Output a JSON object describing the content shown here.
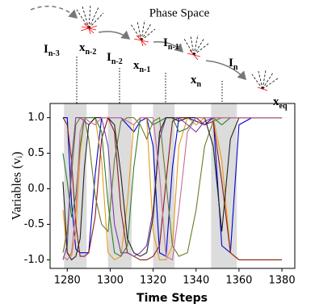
{
  "chart_data": {
    "type": "line",
    "diagram_title": "Phase Space",
    "diagram_labels": [
      {
        "main": "I",
        "sub": "n-3"
      },
      {
        "main": "x",
        "sub": "n-2"
      },
      {
        "main": "I",
        "sub": "n-2"
      },
      {
        "main": "x",
        "sub": "n-1"
      },
      {
        "main": "I",
        "sub": "n-1"
      },
      {
        "main": "x",
        "sub": "n"
      },
      {
        "main": "I",
        "sub": "n"
      },
      {
        "main": "x",
        "sub": "eq"
      }
    ],
    "xlabel": "Time Steps",
    "ylabel": "Variables (vᵢ)",
    "xlim": [
      1272,
      1386
    ],
    "ylim": [
      -1.12,
      1.2
    ],
    "xticks": [
      1280,
      1300,
      1320,
      1340,
      1360,
      1380
    ],
    "yticks": [
      {
        "value": -1,
        "label": "-1.0"
      },
      {
        "value": -0.5,
        "label": "-0.5"
      },
      {
        "value": 0,
        "label": "0.0"
      },
      {
        "value": 0.5,
        "label": "0.5"
      },
      {
        "value": 1,
        "label": "1.0"
      }
    ],
    "shaded_regions": [
      [
        1278.5,
        1289
      ],
      [
        1299,
        1310
      ],
      [
        1320,
        1330
      ],
      [
        1347,
        1359
      ]
    ],
    "shade_color": "#dcdcdc",
    "x": [
      1278,
      1280,
      1282,
      1284,
      1286,
      1288,
      1290,
      1293,
      1296,
      1299,
      1302,
      1305,
      1308,
      1311,
      1314,
      1317,
      1320,
      1323,
      1326,
      1329,
      1332,
      1336,
      1340,
      1344,
      1348,
      1352,
      1356,
      1360,
      1366,
      1372,
      1380
    ],
    "series": [
      {
        "color": "#0000cc",
        "values": [
          1,
          1,
          -0.2,
          -0.85,
          -0.9,
          -0.9,
          -0.9,
          0.2,
          1,
          1,
          1,
          1,
          0.9,
          0.8,
          0.95,
          1,
          0.6,
          -0.9,
          -0.95,
          0.3,
          1,
          1,
          0.95,
          0.9,
          1,
          -0.8,
          -0.9,
          0.9,
          1,
          1,
          1
        ]
      },
      {
        "color": "#e69a1a",
        "values": [
          -0.3,
          -0.9,
          -0.95,
          -0.6,
          0.5,
          1,
          1,
          1,
          0.4,
          -0.9,
          -1,
          -0.95,
          -0.2,
          0.9,
          1,
          1,
          -0.6,
          -1,
          -1,
          -0.8,
          0.6,
          1,
          0.9,
          1,
          1,
          0.4,
          -0.9,
          -1,
          -1,
          -1,
          -1
        ]
      },
      {
        "color": "#8b1a1a",
        "values": [
          1,
          0.9,
          0.4,
          -0.5,
          -0.95,
          -0.95,
          -0.9,
          -0.4,
          0.7,
          1,
          0.8,
          -0.3,
          -0.9,
          -0.95,
          -1,
          -1,
          -0.95,
          -0.8,
          0.1,
          0.95,
          1,
          1,
          1,
          0.9,
          0.95,
          0.1,
          -0.9,
          -1,
          -1,
          -1,
          -1
        ]
      },
      {
        "color": "#6b7a2a",
        "values": [
          -0.9,
          -0.6,
          0.2,
          0.9,
          1,
          1,
          0.7,
          -0.1,
          -0.5,
          -0.6,
          0.4,
          0.95,
          1,
          1,
          0.9,
          0.7,
          0.95,
          1,
          0.1,
          -0.8,
          -0.95,
          -0.9,
          -0.3,
          0.6,
          0.95,
          1,
          1,
          1,
          1,
          1,
          1
        ]
      },
      {
        "color": "#2e7d32",
        "values": [
          0.5,
          0.1,
          -0.4,
          -0.1,
          0.6,
          1,
          1,
          1,
          0.8,
          -0.2,
          -0.9,
          -0.95,
          -0.8,
          0.3,
          1,
          1,
          0.9,
          0.95,
          1,
          1,
          0.8,
          0.85,
          1,
          1,
          1,
          0.9,
          1,
          1,
          1,
          1,
          1
        ]
      },
      {
        "color": "#7b3fa0",
        "values": [
          -1,
          -0.8,
          0.4,
          1,
          1,
          0.95,
          0.9,
          1,
          1,
          0.6,
          -0.5,
          -0.9,
          -0.9,
          -0.95,
          -0.9,
          -0.8,
          -0.3,
          0.7,
          1,
          1,
          1,
          0.9,
          0.8,
          0.95,
          1,
          1,
          1,
          1,
          1,
          1,
          1
        ]
      },
      {
        "color": "#222222",
        "values": [
          0.1,
          -0.9,
          -1,
          -0.95,
          -0.7,
          0.3,
          0.9,
          1,
          1,
          1,
          0.9,
          0.2,
          -0.7,
          -0.9,
          -0.95,
          -0.9,
          -0.4,
          0.8,
          1,
          1,
          0.95,
          1,
          1,
          1,
          0.6,
          -0.6,
          0.7,
          1,
          1,
          1,
          1
        ]
      },
      {
        "color": "#c76b9a",
        "values": [
          -0.95,
          -1,
          -0.9,
          -0.3,
          0.8,
          1,
          0.95,
          0.9,
          1,
          1,
          1,
          1,
          0.95,
          0.9,
          1,
          1,
          1,
          0.2,
          -0.95,
          -1,
          -0.3,
          0.8,
          1,
          1,
          1,
          1,
          1,
          1,
          1,
          1,
          1
        ]
      }
    ]
  }
}
